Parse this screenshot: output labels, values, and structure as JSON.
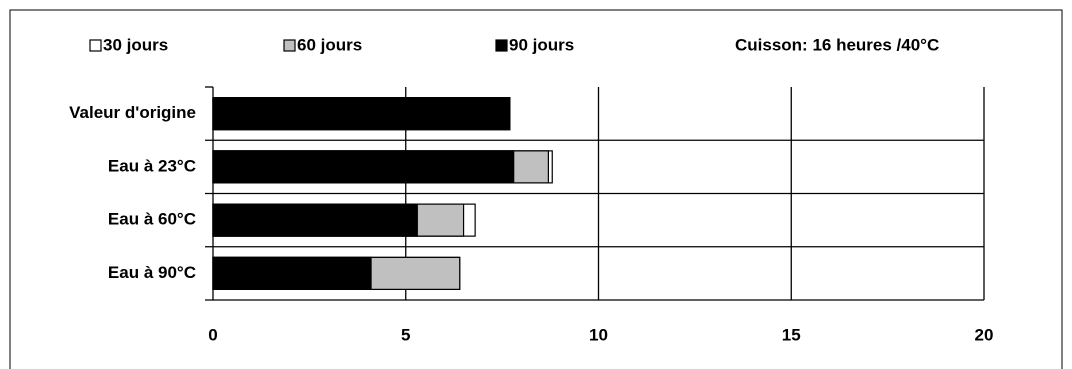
{
  "chart_data": {
    "type": "overlapping-bar",
    "annotation": "Cuisson: 16 heures /40°C",
    "categories": [
      "Valeur d'origine",
      "Eau à 23°C",
      "Eau à 60°C",
      "Eau à 90°C"
    ],
    "series": [
      {
        "name": "30 jours",
        "color": "#ffffff",
        "values": [
          7.7,
          8.8,
          6.8,
          6.4
        ]
      },
      {
        "name": "60 jours",
        "color": "#c0c0c0",
        "values": [
          7.7,
          8.7,
          6.5,
          6.4
        ]
      },
      {
        "name": "90 jours",
        "color": "#000000",
        "values": [
          7.7,
          7.8,
          5.3,
          4.1
        ]
      }
    ],
    "xlim": [
      0,
      20
    ],
    "xticks": [
      0,
      5,
      10,
      15,
      20
    ],
    "grid": true,
    "legend": "top"
  }
}
